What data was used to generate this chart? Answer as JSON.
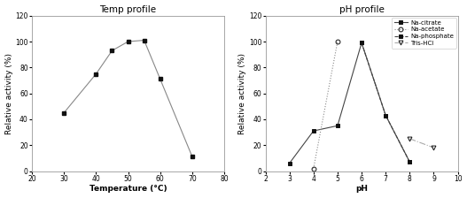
{
  "temp_title": "Temp profile",
  "temp_xlabel": "Temperature (°C)",
  "temp_ylabel": "Relative activity (%)",
  "temp_x": [
    30,
    40,
    45,
    50,
    55,
    60,
    70
  ],
  "temp_y": [
    45,
    75,
    93,
    100,
    101,
    71,
    11
  ],
  "temp_xlim": [
    20,
    80
  ],
  "temp_ylim": [
    0,
    120
  ],
  "temp_xticks": [
    20,
    30,
    40,
    50,
    60,
    70,
    80
  ],
  "temp_yticks": [
    0,
    20,
    40,
    60,
    80,
    100,
    120
  ],
  "ph_title": "pH profile",
  "ph_xlabel": "pH",
  "ph_ylabel": "Relative activity (%)",
  "ph_xlim": [
    2,
    10
  ],
  "ph_ylim": [
    0,
    120
  ],
  "ph_xticks": [
    2,
    3,
    4,
    5,
    6,
    7,
    8,
    9,
    10
  ],
  "ph_yticks": [
    0,
    20,
    40,
    60,
    80,
    100,
    120
  ],
  "series": {
    "Na-citrate": {
      "x": [
        3,
        4,
        5,
        6,
        7,
        8
      ],
      "y": [
        6,
        31,
        35,
        99,
        43,
        7
      ],
      "marker": "s",
      "linestyle": "-",
      "color": "#444444",
      "markersize": 4,
      "fillstyle": "full"
    },
    "Na-acetate": {
      "x": [
        4,
        5
      ],
      "y": [
        2,
        100
      ],
      "marker": "o",
      "linestyle": "dotted",
      "color": "#888888",
      "markersize": 4,
      "fillstyle": "none"
    },
    "Na-phosphate": {
      "x": [
        6,
        7,
        8
      ],
      "y": [
        99,
        43,
        7
      ],
      "marker": "s",
      "linestyle": "--",
      "color": "#444444",
      "markersize": 4,
      "fillstyle": "full"
    },
    "Tris-HCl": {
      "x": [
        8,
        9
      ],
      "y": [
        25,
        18
      ],
      "marker": "v",
      "linestyle": "-.",
      "color": "#aaaaaa",
      "markersize": 4,
      "fillstyle": "none"
    }
  },
  "line_color": "#888888",
  "marker_color": "#111111",
  "bg_color": "#ffffff"
}
